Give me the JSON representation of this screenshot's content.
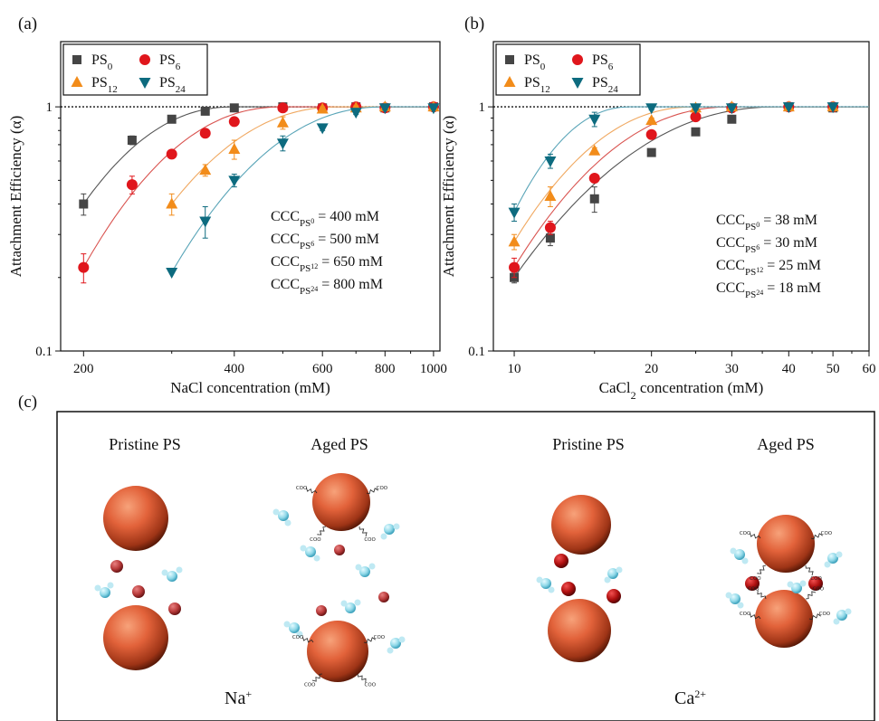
{
  "panels": {
    "a_label": "(a)",
    "b_label": "(b)",
    "c_label": "(c)"
  },
  "colors": {
    "PS0": "#454545",
    "PS6": "#e0161c",
    "PS12": "#f28c1a",
    "PS24": "#0d6b7f",
    "fit_PS0": "#555555",
    "fit_PS6": "#d9534f",
    "fit_PS12": "#f0a860",
    "fit_PS24": "#5aa5b8",
    "particle": "#e0673d",
    "ion": "#b01818"
  },
  "chart_data": [
    {
      "type": "scatter",
      "panel": "(a)",
      "xlabel_main": "NaCl concentration (mM)",
      "ylabel": "Attachment Efficiency (α)",
      "xscale": "log",
      "yscale": "log",
      "xlim": [
        180,
        1030
      ],
      "ylim": [
        0.1,
        1.85
      ],
      "xticks": [
        200,
        400,
        600,
        800,
        1000
      ],
      "xtick_labels": [
        "200",
        "400",
        "600",
        "800",
        "1000"
      ],
      "yticks": [
        0.1,
        1
      ],
      "ytick_labels": [
        "0.1",
        "1"
      ],
      "reference_line": 1,
      "legend_position": "top-left",
      "series": [
        {
          "name_base": "PS",
          "name_sub": "0",
          "key": "PS0",
          "marker": "square",
          "x": [
            200,
            250,
            300,
            350,
            400,
            500,
            600,
            700,
            800,
            1000
          ],
          "y": [
            0.4,
            0.73,
            0.89,
            0.96,
            0.99,
            1.0,
            0.99,
            1.0,
            0.99,
            1.0
          ],
          "err": [
            0.04,
            0.03,
            0.02,
            0.02,
            0.01,
            0.01,
            0.02,
            0.01,
            0.02,
            0.01
          ],
          "ccc": 400
        },
        {
          "name_base": "PS",
          "name_sub": "6",
          "key": "PS6",
          "marker": "circle",
          "x": [
            200,
            250,
            300,
            350,
            400,
            500,
            600,
            700,
            800,
            1000
          ],
          "y": [
            0.22,
            0.48,
            0.64,
            0.78,
            0.87,
            0.99,
            0.99,
            1.0,
            0.99,
            1.0
          ],
          "err": [
            0.03,
            0.04,
            0.02,
            0.02,
            0.03,
            0.02,
            0.02,
            0.01,
            0.02,
            0.01
          ],
          "ccc": 500
        },
        {
          "name_base": "PS",
          "name_sub": "12",
          "key": "PS12",
          "marker": "triangle-up",
          "x": [
            300,
            350,
            400,
            500,
            600,
            700,
            800,
            1000
          ],
          "y": [
            0.4,
            0.55,
            0.67,
            0.86,
            0.98,
            0.99,
            1.0,
            1.0
          ],
          "err": [
            0.04,
            0.03,
            0.06,
            0.05,
            0.02,
            0.02,
            0.01,
            0.01
          ],
          "ccc": 650
        },
        {
          "name_base": "PS",
          "name_sub": "24",
          "key": "PS24",
          "marker": "triangle-down",
          "x": [
            300,
            350,
            400,
            500,
            600,
            700,
            800,
            1000
          ],
          "y": [
            0.21,
            0.34,
            0.5,
            0.71,
            0.82,
            0.95,
            0.99,
            0.99
          ],
          "err": [
            0.0,
            0.05,
            0.03,
            0.05,
            0.02,
            0.02,
            0.02,
            0.01
          ],
          "ccc": 800
        }
      ],
      "ccc_labels": [
        {
          "base": "CCC",
          "sub": "PS",
          "subsub": "0",
          "value": " = 400 mM"
        },
        {
          "base": "CCC",
          "sub": "PS",
          "subsub": "6",
          "value": " = 500 mM"
        },
        {
          "base": "CCC",
          "sub": "PS",
          "subsub": "12",
          "value": " = 650 mM"
        },
        {
          "base": "CCC",
          "sub": "PS",
          "subsub": "24",
          "value": " = 800 mM"
        }
      ]
    },
    {
      "type": "scatter",
      "panel": "(b)",
      "xlabel_main": "CaCl",
      "xlabel_sub": "2",
      "xlabel_rest": " concentration (mM)",
      "ylabel": "Attachment Efficiency (α)",
      "xscale": "log",
      "yscale": "log",
      "xlim": [
        9,
        60
      ],
      "ylim": [
        0.1,
        1.85
      ],
      "xticks": [
        10,
        20,
        30,
        40,
        50,
        60
      ],
      "xtick_labels": [
        "10",
        "20",
        "30",
        "40",
        "50",
        "60"
      ],
      "yticks": [
        0.1,
        1
      ],
      "ytick_labels": [
        "0.1",
        "1"
      ],
      "reference_line": 1,
      "legend_position": "top-left",
      "series": [
        {
          "name_base": "PS",
          "name_sub": "0",
          "key": "PS0",
          "marker": "square",
          "x": [
            10,
            12,
            15,
            20,
            25,
            30,
            40,
            50
          ],
          "y": [
            0.2,
            0.29,
            0.42,
            0.65,
            0.79,
            0.89,
            1.0,
            0.99
          ],
          "err": [
            0.01,
            0.02,
            0.05,
            0.02,
            0.02,
            0.02,
            0.02,
            0.02
          ],
          "ccc": 38
        },
        {
          "name_base": "PS",
          "name_sub": "6",
          "key": "PS6",
          "marker": "circle",
          "x": [
            10,
            12,
            15,
            20,
            25,
            30,
            40,
            50
          ],
          "y": [
            0.22,
            0.32,
            0.51,
            0.77,
            0.91,
            0.99,
            1.0,
            1.0
          ],
          "err": [
            0.02,
            0.02,
            0.02,
            0.02,
            0.02,
            0.02,
            0.02,
            0.02
          ],
          "ccc": 30
        },
        {
          "name_base": "PS",
          "name_sub": "12",
          "key": "PS12",
          "marker": "triangle-up",
          "x": [
            10,
            12,
            15,
            20,
            25,
            30,
            40,
            50
          ],
          "y": [
            0.28,
            0.43,
            0.66,
            0.88,
            0.99,
            1.0,
            1.0,
            1.0
          ],
          "err": [
            0.02,
            0.04,
            0.02,
            0.02,
            0.02,
            0.01,
            0.01,
            0.01
          ],
          "ccc": 25
        },
        {
          "name_base": "PS",
          "name_sub": "24",
          "key": "PS24",
          "marker": "triangle-down",
          "x": [
            10,
            12,
            15,
            20,
            25,
            30,
            40,
            50
          ],
          "y": [
            0.37,
            0.6,
            0.89,
            0.99,
            0.99,
            0.99,
            1.0,
            1.0
          ],
          "err": [
            0.03,
            0.04,
            0.06,
            0.02,
            0.02,
            0.01,
            0.01,
            0.01
          ],
          "ccc": 18
        }
      ],
      "ccc_labels": [
        {
          "base": "CCC",
          "sub": "PS",
          "subsub": "0",
          "value": " = 38 mM"
        },
        {
          "base": "CCC",
          "sub": "PS",
          "subsub": "6",
          "value": " = 30 mM"
        },
        {
          "base": "CCC",
          "sub": "PS",
          "subsub": "12",
          "value": " = 25 mM"
        },
        {
          "base": "CCC",
          "sub": "PS",
          "subsub": "24",
          "value": " = 18 mM"
        }
      ]
    }
  ],
  "schematic": {
    "titles": [
      "Pristine PS",
      "Aged PS",
      "Pristine PS",
      "Aged PS"
    ],
    "ion_na": "Na",
    "ion_na_sup": "+",
    "ion_ca": "Ca",
    "ion_ca_sup": "2+",
    "ion_small_label": "Na",
    "group_label": "COO"
  }
}
